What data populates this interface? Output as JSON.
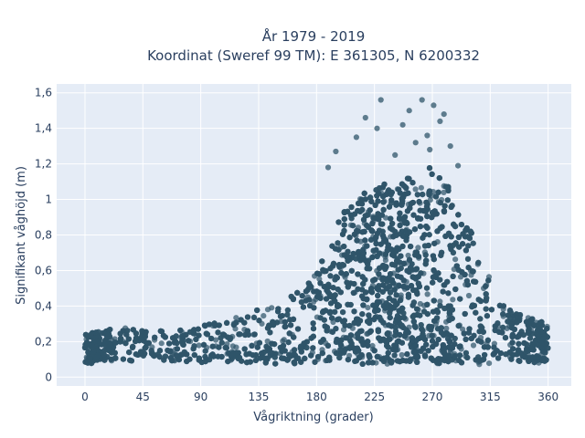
{
  "chart_data": {
    "type": "scatter",
    "title_line1": "År 1979 - 2019",
    "title_line2": "Koordinat (Sweref 99 TM): E 361305, N 6200332",
    "xlabel": "Vågriktning (grader)",
    "ylabel": "Signifikant våghöjd (m)",
    "xlim": [
      -22,
      378
    ],
    "ylim": [
      -0.05,
      1.65
    ],
    "x_ticks": [
      0,
      45,
      90,
      135,
      180,
      225,
      270,
      315,
      360
    ],
    "x_tick_labels": [
      "0",
      "45",
      "90",
      "135",
      "180",
      "225",
      "270",
      "315",
      "360"
    ],
    "y_ticks": [
      0,
      0.2,
      0.4,
      0.6,
      0.8,
      1,
      1.2,
      1.4,
      1.6
    ],
    "y_tick_labels": [
      "0",
      "0,2",
      "0,4",
      "0,6",
      "0,8",
      "1",
      "1,2",
      "1,4",
      "1,6"
    ],
    "grid": true,
    "legend": "none",
    "background_color": "#e5ecf6",
    "marker_color": "#2f5569",
    "envelope": {
      "direction": [
        0,
        15,
        30,
        45,
        60,
        75,
        90,
        105,
        120,
        135,
        150,
        165,
        180,
        190,
        200,
        210,
        220,
        230,
        240,
        250,
        260,
        270,
        280,
        290,
        300,
        310,
        320,
        330,
        340,
        350,
        360
      ],
      "max_height": [
        0.24,
        0.27,
        0.28,
        0.27,
        0.26,
        0.27,
        0.29,
        0.31,
        0.34,
        0.38,
        0.42,
        0.48,
        0.58,
        0.75,
        0.92,
        1.02,
        1.05,
        1.08,
        1.1,
        1.12,
        1.1,
        1.2,
        1.12,
        0.98,
        0.82,
        0.62,
        0.5,
        0.42,
        0.36,
        0.32,
        0.3
      ]
    },
    "outliers": [
      {
        "x": 230,
        "y": 1.56
      },
      {
        "x": 262,
        "y": 1.56
      },
      {
        "x": 271,
        "y": 1.53
      },
      {
        "x": 252,
        "y": 1.5
      },
      {
        "x": 218,
        "y": 1.46
      },
      {
        "x": 227,
        "y": 1.4
      },
      {
        "x": 247,
        "y": 1.42
      },
      {
        "x": 279,
        "y": 1.48
      },
      {
        "x": 211,
        "y": 1.35
      },
      {
        "x": 266,
        "y": 1.36
      },
      {
        "x": 257,
        "y": 1.32
      },
      {
        "x": 284,
        "y": 1.3
      },
      {
        "x": 195,
        "y": 1.27
      },
      {
        "x": 189,
        "y": 1.18
      },
      {
        "x": 241,
        "y": 1.25
      },
      {
        "x": 290,
        "y": 1.19
      },
      {
        "x": 276,
        "y": 1.44
      },
      {
        "x": 268,
        "y": 1.28
      }
    ]
  }
}
